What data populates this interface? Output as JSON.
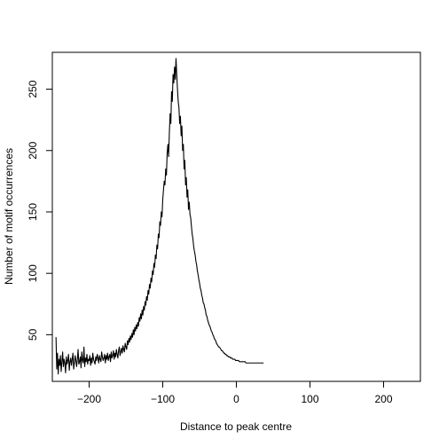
{
  "chart_data": {
    "type": "line",
    "title": "",
    "xlabel": "Distance to peak centre",
    "ylabel": "Number of motif occurrences",
    "xlim": [
      -250,
      250
    ],
    "ylim": [
      12,
      280
    ],
    "xticks": [
      -200,
      -100,
      0,
      100,
      200
    ],
    "yticks": [
      50,
      100,
      150,
      200,
      250
    ],
    "xtick_labels": [
      "−200",
      "−100",
      "0",
      "100",
      "200"
    ],
    "ytick_labels": [
      "50",
      "100",
      "150",
      "200",
      "250"
    ],
    "grid": false,
    "line_color": "#000000",
    "series": [
      {
        "name": "",
        "x_start": -245,
        "x_step": 1,
        "values": [
          48,
          22,
          35,
          18,
          30,
          25,
          33,
          20,
          28,
          36,
          24,
          30,
          27,
          19,
          32,
          26,
          29,
          34,
          21,
          28,
          31,
          25,
          30,
          35,
          22,
          27,
          33,
          29,
          24,
          30,
          38,
          26,
          28,
          32,
          23,
          36,
          29,
          27,
          40,
          24,
          31,
          28,
          34,
          26,
          30,
          29,
          33,
          25,
          31,
          27,
          35,
          30,
          28,
          26,
          32,
          29,
          34,
          31,
          27,
          33,
          30,
          28,
          36,
          32,
          29,
          31,
          34,
          27,
          33,
          30,
          35,
          29,
          32,
          34,
          28,
          36,
          31,
          33,
          37,
          30,
          35,
          32,
          38,
          34,
          31,
          37,
          40,
          33,
          36,
          39,
          35,
          41,
          38,
          36,
          43,
          40,
          38,
          45,
          42,
          47,
          44,
          49,
          46,
          51,
          48,
          54,
          50,
          56,
          53,
          58,
          55,
          60,
          57,
          64,
          61,
          67,
          63,
          70,
          66,
          73,
          70,
          77,
          74,
          81,
          78,
          86,
          83,
          91,
          88,
          96,
          93,
          102,
          99,
          108,
          105,
          115,
          112,
          123,
          120,
          132,
          129,
          142,
          139,
          150,
          146,
          160,
          168,
          175,
          172,
          185,
          180,
          198,
          205,
          195,
          215,
          230,
          222,
          248,
          240,
          262,
          255,
          268,
          258,
          275,
          262,
          250,
          240,
          235,
          222,
          228,
          212,
          220,
          200,
          205,
          185,
          192,
          172,
          178,
          162,
          168,
          152,
          158,
          148,
          145,
          138,
          132,
          128,
          122,
          118,
          115,
          110,
          107,
          102,
          99,
          95,
          92,
          88,
          86,
          82,
          80,
          76,
          75,
          72,
          70,
          66,
          65,
          62,
          60,
          58,
          57,
          55,
          53,
          52,
          50,
          49,
          47,
          46,
          45,
          43,
          42,
          41,
          40,
          40,
          39,
          38,
          37,
          37,
          36,
          35,
          35,
          34,
          34,
          33,
          33,
          32,
          32,
          32,
          31,
          31,
          31,
          30,
          30,
          30,
          30,
          29,
          29,
          29,
          29,
          29,
          28,
          28,
          28,
          28,
          28,
          28,
          28,
          28,
          28,
          27,
          27,
          27,
          27,
          27,
          27,
          27,
          27,
          27,
          27,
          27,
          27,
          27,
          27,
          27,
          27,
          27,
          27,
          27,
          27,
          27,
          27,
          27,
          27,
          27
        ]
      }
    ]
  }
}
